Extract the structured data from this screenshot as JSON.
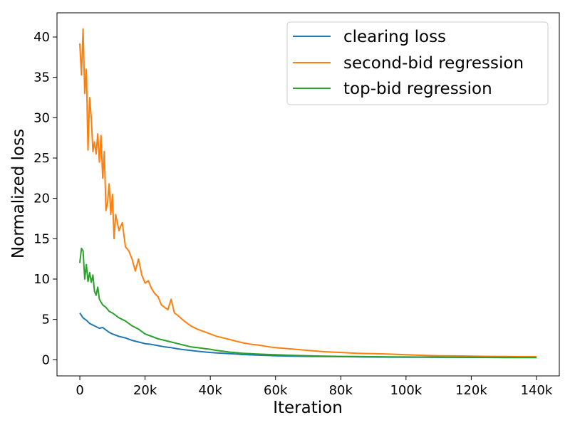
{
  "chart_data": {
    "type": "line",
    "xlabel": "Iteration",
    "ylabel": "Normalized loss",
    "xlim": [
      -7000,
      147000
    ],
    "ylim": [
      -2,
      43
    ],
    "xticks": [
      {
        "value": 0,
        "label": "0"
      },
      {
        "value": 20000,
        "label": "20k"
      },
      {
        "value": 40000,
        "label": "40k"
      },
      {
        "value": 60000,
        "label": "60k"
      },
      {
        "value": 80000,
        "label": "80k"
      },
      {
        "value": 100000,
        "label": "100k"
      },
      {
        "value": 120000,
        "label": "120k"
      },
      {
        "value": 140000,
        "label": "140k"
      }
    ],
    "yticks": [
      {
        "value": 0,
        "label": "0"
      },
      {
        "value": 5,
        "label": "5"
      },
      {
        "value": 10,
        "label": "10"
      },
      {
        "value": 15,
        "label": "15"
      },
      {
        "value": 20,
        "label": "20"
      },
      {
        "value": 25,
        "label": "25"
      },
      {
        "value": 30,
        "label": "30"
      },
      {
        "value": 35,
        "label": "35"
      },
      {
        "value": 40,
        "label": "40"
      }
    ],
    "grid": false,
    "legend": "top-right",
    "series": [
      {
        "name": "clearing loss",
        "color": "#1f77b4",
        "x": [
          0,
          1000,
          2000,
          3000,
          4000,
          5000,
          6000,
          7000,
          8000,
          9000,
          10000,
          12000,
          14000,
          16000,
          18000,
          20000,
          22000,
          24000,
          26000,
          28000,
          30000,
          32000,
          34000,
          36000,
          38000,
          40000,
          42000,
          44000,
          46000,
          48000,
          50000,
          55000,
          60000,
          65000,
          70000,
          75000,
          80000,
          85000,
          90000,
          95000,
          100000,
          105000,
          110000,
          115000,
          120000,
          125000,
          130000,
          135000,
          140000
        ],
        "y": [
          5.8,
          5.2,
          4.9,
          4.5,
          4.3,
          4.1,
          3.9,
          4.0,
          3.7,
          3.4,
          3.2,
          2.9,
          2.7,
          2.4,
          2.2,
          2.0,
          1.9,
          1.75,
          1.6,
          1.5,
          1.35,
          1.25,
          1.15,
          1.05,
          0.98,
          0.9,
          0.85,
          0.8,
          0.75,
          0.7,
          0.65,
          0.57,
          0.5,
          0.45,
          0.42,
          0.4,
          0.38,
          0.36,
          0.34,
          0.33,
          0.32,
          0.31,
          0.3,
          0.3,
          0.29,
          0.29,
          0.28,
          0.28,
          0.28
        ]
      },
      {
        "name": "second-bid regression",
        "color": "#ff7f0e",
        "x": [
          0,
          500,
          1000,
          1500,
          2000,
          2500,
          3000,
          3500,
          4000,
          4500,
          5000,
          5500,
          6000,
          6500,
          7000,
          7500,
          8000,
          8500,
          9000,
          9500,
          10000,
          10500,
          11000,
          12000,
          13000,
          14000,
          15000,
          16000,
          17000,
          18000,
          19000,
          20000,
          21000,
          22000,
          23000,
          24000,
          25000,
          26000,
          27000,
          28000,
          29000,
          30000,
          32000,
          34000,
          36000,
          38000,
          40000,
          42000,
          44000,
          46000,
          48000,
          50000,
          52000,
          55000,
          58000,
          60000,
          63000,
          66000,
          70000,
          75000,
          80000,
          85000,
          90000,
          95000,
          100000,
          105000,
          110000,
          115000,
          120000,
          125000,
          130000,
          135000,
          140000
        ],
        "y": [
          39.2,
          35.3,
          41.0,
          33.0,
          36.0,
          26.0,
          32.5,
          30.0,
          25.8,
          27.0,
          25.5,
          28.0,
          24.5,
          27.8,
          22.5,
          25.8,
          18.5,
          19.5,
          21.8,
          18.0,
          20.5,
          15.0,
          18.0,
          16.0,
          17.0,
          14.0,
          13.5,
          12.5,
          11.0,
          12.5,
          10.5,
          9.5,
          9.8,
          8.8,
          8.2,
          7.8,
          6.8,
          6.5,
          6.2,
          7.5,
          5.8,
          5.5,
          4.8,
          4.2,
          3.8,
          3.5,
          3.2,
          2.9,
          2.7,
          2.5,
          2.3,
          2.1,
          1.95,
          1.8,
          1.6,
          1.5,
          1.4,
          1.3,
          1.15,
          1.0,
          0.9,
          0.8,
          0.75,
          0.7,
          0.62,
          0.55,
          0.5,
          0.48,
          0.45,
          0.42,
          0.4,
          0.38,
          0.37
        ]
      },
      {
        "name": "top-bid regression",
        "color": "#2ca02c",
        "x": [
          0,
          500,
          1000,
          1500,
          2000,
          2500,
          3000,
          3500,
          4000,
          4500,
          5000,
          5500,
          6000,
          7000,
          8000,
          9000,
          10000,
          11000,
          12000,
          13000,
          14000,
          15000,
          16000,
          17000,
          18000,
          19000,
          20000,
          22000,
          24000,
          26000,
          28000,
          30000,
          32000,
          34000,
          36000,
          38000,
          40000,
          42000,
          44000,
          46000,
          48000,
          50000,
          55000,
          60000,
          65000,
          70000,
          75000,
          80000,
          85000,
          90000,
          95000,
          100000,
          105000,
          110000,
          115000,
          120000,
          125000,
          130000,
          135000,
          140000
        ],
        "y": [
          12.0,
          13.8,
          13.5,
          10.0,
          11.8,
          9.7,
          10.8,
          9.6,
          10.5,
          8.5,
          8.0,
          9.0,
          7.5,
          6.8,
          6.5,
          6.0,
          5.8,
          5.5,
          5.2,
          5.0,
          4.8,
          4.5,
          4.2,
          4.0,
          3.8,
          3.5,
          3.2,
          2.9,
          2.6,
          2.4,
          2.2,
          2.0,
          1.8,
          1.6,
          1.5,
          1.4,
          1.3,
          1.15,
          1.05,
          0.95,
          0.88,
          0.8,
          0.7,
          0.62,
          0.55,
          0.5,
          0.45,
          0.42,
          0.4,
          0.38,
          0.36,
          0.35,
          0.34,
          0.33,
          0.32,
          0.31,
          0.3,
          0.3,
          0.29,
          0.29
        ]
      }
    ]
  }
}
